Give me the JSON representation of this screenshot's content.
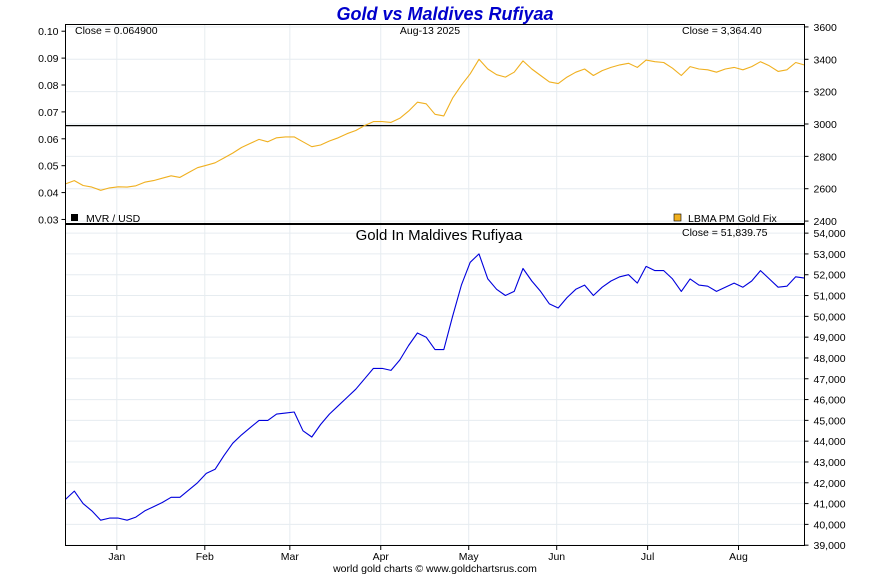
{
  "chart_data": {
    "type": "line",
    "title": "Gold vs Maldives Rufiyaa",
    "credit": "world gold charts © www.goldchartsrus.com",
    "date_label": "Aug-13  2025",
    "colors": {
      "title": "#0000cc",
      "gold": "#f0b020",
      "maldives": "#0000dd",
      "grid": "#e6ecf0",
      "reference_line": "#000000",
      "frame": "#000000"
    },
    "x_axis": {
      "tick_labels": [
        "Jan",
        "Feb",
        "Mar",
        "Apr",
        "May",
        "Jun",
        "Jul",
        "Aug"
      ],
      "tick_positions": [
        17.5,
        47.5,
        76.5,
        107.5,
        137.5,
        167.5,
        198.5,
        229.5
      ],
      "xlim": [
        0,
        252
      ]
    },
    "panels": [
      {
        "id": "top",
        "close_left": "Close = 0.064900",
        "close_right": "Close = 3,364.40",
        "legend_left": {
          "label": "MVR / USD",
          "color": "#000000"
        },
        "legend_right": {
          "label": "LBMA PM Gold Fix",
          "color": "#f0b020"
        },
        "left_axis": {
          "ticks": [
            "0.10",
            "0.09",
            "0.08",
            "0.07",
            "0.06",
            "0.05",
            "0.04",
            "0.03"
          ],
          "ylim": [
            0.0285,
            0.1025
          ]
        },
        "right_axis": {
          "ticks": [
            "3600",
            "3400",
            "3200",
            "3000",
            "2800",
            "2600",
            "2400"
          ],
          "ylim": [
            2385,
            3615
          ]
        },
        "reference_series": {
          "name": "MVR / USD",
          "value": 0.0649,
          "axis": "left"
        },
        "series": [
          {
            "name": "LBMA PM Gold Fix",
            "axis": "right",
            "color": "#f0b020",
            "x": [
              0,
              3,
              6,
              9,
              12,
              15,
              18,
              21,
              24,
              27,
              30,
              33,
              36,
              39,
              42,
              45,
              48,
              51,
              54,
              57,
              60,
              63,
              66,
              69,
              72,
              75,
              78,
              81,
              84,
              87,
              90,
              93,
              96,
              99,
              102,
              105,
              108,
              111,
              114,
              117,
              120,
              123,
              126,
              129,
              132,
              135,
              138,
              141,
              144,
              147,
              150,
              153,
              156,
              159,
              162,
              165,
              168,
              171,
              174,
              177,
              180,
              183,
              186,
              189,
              192,
              195,
              198,
              201,
              204,
              207,
              210,
              213,
              216,
              219,
              222,
              225,
              228,
              231,
              234,
              237,
              240,
              243,
              246,
              249,
              252
            ],
            "values": [
              2630,
              2650,
              2620,
              2610,
              2590,
              2605,
              2612,
              2610,
              2618,
              2640,
              2650,
              2665,
              2680,
              2670,
              2700,
              2730,
              2745,
              2760,
              2790,
              2820,
              2855,
              2880,
              2905,
              2890,
              2915,
              2920,
              2920,
              2890,
              2860,
              2870,
              2895,
              2915,
              2940,
              2960,
              2990,
              3015,
              3015,
              3010,
              3035,
              3080,
              3135,
              3125,
              3060,
              3050,
              3160,
              3240,
              3310,
              3400,
              3340,
              3305,
              3290,
              3320,
              3390,
              3340,
              3300,
              3260,
              3250,
              3290,
              3320,
              3340,
              3300,
              3330,
              3350,
              3365,
              3375,
              3350,
              3395,
              3385,
              3380,
              3345,
              3300,
              3355,
              3340,
              3335,
              3320,
              3340,
              3350,
              3335,
              3355,
              3385,
              3360,
              3325,
              3335,
              3380,
              3364.4
            ]
          }
        ]
      },
      {
        "id": "bottom",
        "title": "Gold In Maldives Rufiyaa",
        "close_right": "Close = 51,839.75",
        "right_axis": {
          "ticks": [
            "54,000",
            "53,000",
            "52,000",
            "51,000",
            "50,000",
            "49,000",
            "48,000",
            "47,000",
            "46,000",
            "45,000",
            "44,000",
            "43,000",
            "42,000",
            "41,000",
            "40,000",
            "39,000"
          ],
          "ylim": [
            38985,
            54415
          ]
        },
        "series": [
          {
            "name": "Gold In Maldives Rufiyaa",
            "axis": "right",
            "color": "#0000dd",
            "x": [
              0,
              3,
              6,
              9,
              12,
              15,
              18,
              21,
              24,
              27,
              30,
              33,
              36,
              39,
              42,
              45,
              48,
              51,
              54,
              57,
              60,
              63,
              66,
              69,
              72,
              75,
              78,
              81,
              84,
              87,
              90,
              93,
              96,
              99,
              102,
              105,
              108,
              111,
              114,
              117,
              120,
              123,
              126,
              129,
              132,
              135,
              138,
              141,
              144,
              147,
              150,
              153,
              156,
              159,
              162,
              165,
              168,
              171,
              174,
              177,
              180,
              183,
              186,
              189,
              192,
              195,
              198,
              201,
              204,
              207,
              210,
              213,
              216,
              219,
              222,
              225,
              228,
              231,
              234,
              237,
              240,
              243,
              246,
              249,
              252
            ],
            "values": [
              41200,
              41600,
              41000,
              40650,
              40200,
              40300,
              40300,
              40200,
              40350,
              40650,
              40850,
              41050,
              41300,
              41300,
              41650,
              42000,
              42450,
              42650,
              43300,
              43900,
              44300,
              44650,
              45000,
              45000,
              45300,
              45350,
              45400,
              44500,
              44200,
              44800,
              45300,
              45700,
              46100,
              46500,
              47000,
              47500,
              47500,
              47400,
              47900,
              48600,
              49200,
              49000,
              48400,
              48400,
              50000,
              51500,
              52600,
              53000,
              51800,
              51300,
              51000,
              51200,
              52300,
              51700,
              51200,
              50600,
              50400,
              50900,
              51300,
              51500,
              51000,
              51400,
              51700,
              51900,
              52000,
              51600,
              52400,
              52200,
              52200,
              51800,
              51200,
              51800,
              51500,
              51450,
              51200,
              51400,
              51600,
              51400,
              51700,
              52200,
              51800,
              51400,
              51450,
              51900,
              51839.75
            ]
          }
        ]
      }
    ]
  }
}
